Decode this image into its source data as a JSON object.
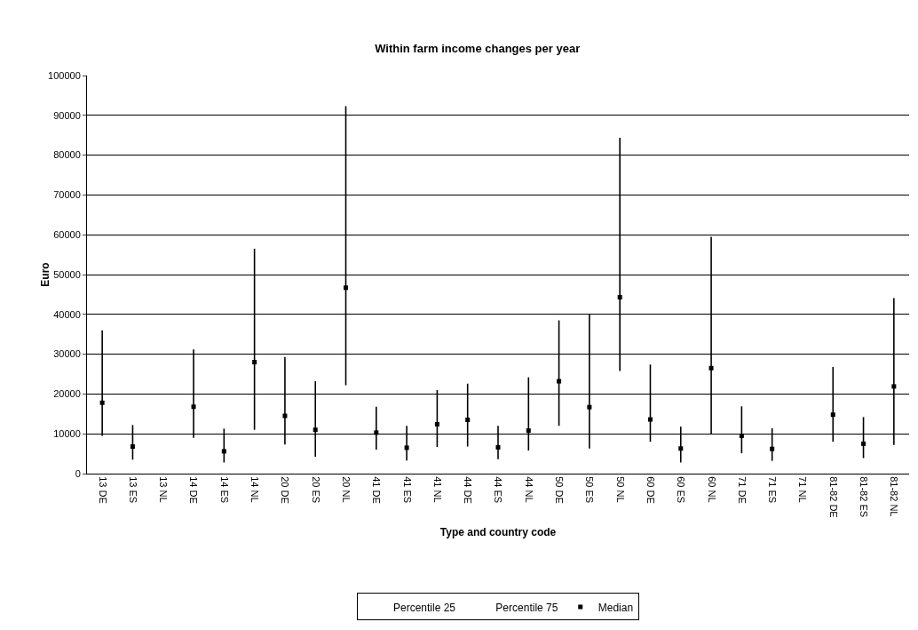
{
  "chart_data": {
    "type": "scatter",
    "title": "Within farm income changes per year",
    "xlabel": "Type and country code",
    "ylabel": "Euro",
    "annotations": [
      "Percentile 25",
      "Percentile 75"
    ],
    "categories": [
      "13 DE",
      "13 ES",
      "13 NL",
      "14 DE",
      "14 ES",
      "14 NL",
      "20 DE",
      "20 ES",
      "20 NL",
      "41 DE",
      "41 ES",
      "41 NL",
      "44 DE",
      "44 ES",
      "44 NL",
      "50 DE",
      "50 ES",
      "50 NL",
      "60 DE",
      "60 ES",
      "60 NL",
      "71 DE",
      "71 ES",
      "71 NL",
      "81-82 DE",
      "81-82 ES",
      "81-82 NL"
    ],
    "series": [
      {
        "name": "Median",
        "color": "#000000",
        "values": [
          17800,
          6800,
          null,
          16800,
          5600,
          28000,
          14500,
          11000,
          46700,
          10300,
          6500,
          12400,
          13500,
          6600,
          10800,
          23200,
          16700,
          44300,
          13600,
          6300,
          26500,
          9500,
          6200,
          null,
          14800,
          7500,
          21900
        ],
        "errors": [
          [
            9500,
            36000
          ],
          [
            3500,
            12200
          ],
          null,
          [
            9000,
            31200
          ],
          [
            2800,
            11300
          ],
          [
            11000,
            56500
          ],
          [
            7300,
            29300
          ],
          [
            4200,
            23200
          ],
          [
            22200,
            92300
          ],
          [
            6000,
            16800
          ],
          [
            3300,
            12000
          ],
          [
            6700,
            21000
          ],
          [
            6800,
            22600
          ],
          [
            3600,
            12000
          ],
          [
            5800,
            24200
          ],
          [
            12000,
            38500
          ],
          [
            6300,
            40200
          ],
          [
            25800,
            84400
          ],
          [
            8000,
            27400
          ],
          [
            2800,
            11800
          ],
          [
            9800,
            59500
          ],
          [
            5100,
            16900
          ],
          [
            3200,
            11400
          ],
          null,
          [
            8000,
            26800
          ],
          [
            3900,
            14200
          ],
          [
            7200,
            44100
          ]
        ]
      }
    ],
    "marker": "square",
    "ylim": [
      0,
      100000
    ],
    "yticks": [
      0,
      10000,
      20000,
      30000,
      40000,
      50000,
      60000,
      70000,
      80000,
      90000,
      100000
    ],
    "grid": "y",
    "legend": "bottom"
  }
}
